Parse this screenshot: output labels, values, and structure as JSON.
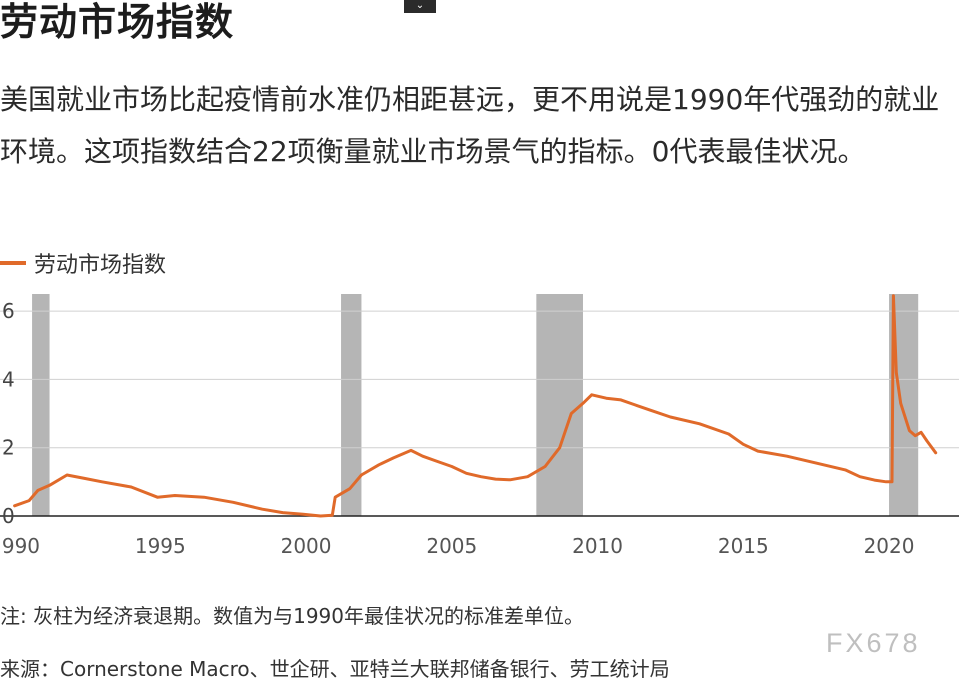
{
  "header": {
    "title": "劳动市场指数",
    "subtitle": "美国就业市场比起疫情前水准仍相距甚远，更不用说是1990年代强劲的就业环境。这项指数结合22项衡量就业市场景气的指标。0代表最佳状况。",
    "toggle_icon": "chevron-down-icon"
  },
  "legend": {
    "label": "劳动市场指数",
    "color": "#e06a2a"
  },
  "footer": {
    "note": "注: 灰柱为经济衰退期。数值为与1990年最佳状况的标准差单位。",
    "source": "来源：Cornerstone Macro、世企研、亚特兰大联邦储备银行、劳工统计局",
    "watermark": "FX678"
  },
  "chart_data": {
    "type": "line",
    "title": "劳动市场指数",
    "xlabel": "",
    "ylabel": "",
    "xlim": [
      1989.5,
      2022.4
    ],
    "ylim": [
      0,
      6.5
    ],
    "x_ticks": [
      1990,
      1995,
      2000,
      2005,
      2010,
      2015,
      2020
    ],
    "y_ticks": [
      0,
      2,
      4,
      6
    ],
    "grid": true,
    "recessions": [
      [
        1990.6,
        1991.2
      ],
      [
        2001.2,
        2001.9
      ],
      [
        2007.9,
        2009.5
      ],
      [
        2020.0,
        2021.0
      ]
    ],
    "recession_color": "#b5b5b5",
    "series": [
      {
        "name": "劳动市场指数",
        "color": "#e06a2a",
        "x": [
          1990.0,
          1990.5,
          1990.8,
          1991.2,
          1991.8,
          1992.4,
          1993.0,
          1994.0,
          1994.9,
          1995.5,
          1996.5,
          1997.5,
          1998.5,
          1999.2,
          1999.9,
          2000.5,
          2000.9,
          2001.0,
          2001.5,
          2001.9,
          2002.5,
          2003.0,
          2003.6,
          2004.0,
          2004.5,
          2005.0,
          2005.5,
          2006.0,
          2006.5,
          2007.0,
          2007.6,
          2008.2,
          2008.7,
          2009.1,
          2009.5,
          2009.8,
          2010.3,
          2010.8,
          2011.3,
          2011.8,
          2012.5,
          2013.5,
          2014.5,
          2015.0,
          2015.5,
          2016.5,
          2017.5,
          2018.5,
          2019.0,
          2019.5,
          2019.9,
          2020.1,
          2020.15,
          2020.25,
          2020.4,
          2020.7,
          2020.9,
          2021.1,
          2021.3,
          2021.6
        ],
        "values": [
          0.3,
          0.45,
          0.75,
          0.9,
          1.2,
          1.1,
          1.0,
          0.85,
          0.55,
          0.6,
          0.55,
          0.4,
          0.2,
          0.1,
          0.05,
          0.0,
          0.02,
          0.55,
          0.8,
          1.2,
          1.5,
          1.7,
          1.92,
          1.75,
          1.6,
          1.45,
          1.25,
          1.15,
          1.08,
          1.06,
          1.15,
          1.45,
          2.0,
          3.0,
          3.3,
          3.55,
          3.45,
          3.4,
          3.25,
          3.1,
          2.9,
          2.7,
          2.4,
          2.1,
          1.9,
          1.75,
          1.55,
          1.35,
          1.15,
          1.05,
          1.0,
          1.0,
          6.45,
          4.2,
          3.3,
          2.5,
          2.35,
          2.45,
          2.2,
          1.85
        ]
      }
    ]
  }
}
